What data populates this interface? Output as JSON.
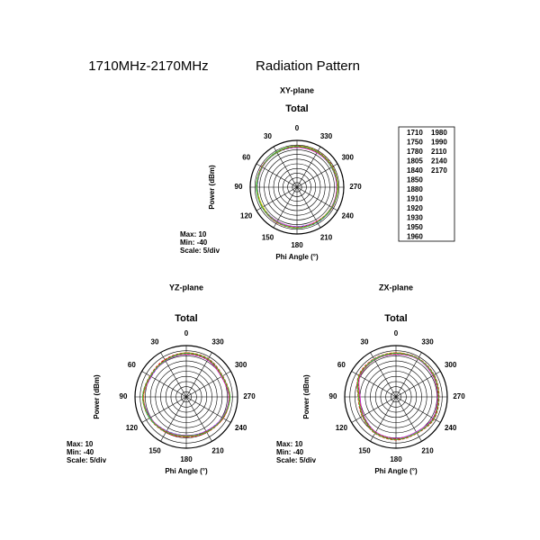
{
  "header": {
    "range": "1710MHz-2170MHz",
    "title": "Radiation Pattern"
  },
  "chart_data": [
    {
      "type": "polar",
      "plane": "XY-plane",
      "title": "Total",
      "ylabel": "Power (dBm)",
      "xlabel": "Phi Angle (°)",
      "angles": [
        0,
        30,
        60,
        90,
        120,
        150,
        180,
        210,
        240,
        270,
        300,
        330
      ],
      "rlim": [
        -40,
        10
      ],
      "rticks": [
        -35,
        -30,
        -25,
        -20,
        -15,
        -10,
        -5,
        0,
        5,
        10
      ],
      "annotations": [
        "Max: 10",
        "Min: -40",
        "Scale: 5/div"
      ],
      "series": [
        {
          "name": "1710",
          "color": "#66dd33",
          "values": [
            3,
            3.5,
            3,
            2.5,
            2,
            2.5,
            3,
            2.5,
            3,
            3.5,
            3,
            3.5
          ]
        },
        {
          "name": "1750",
          "color": "#2222aa",
          "values": [
            3.5,
            3,
            2.5,
            3,
            2.5,
            2,
            2.5,
            3,
            3.5,
            3,
            2.5,
            3
          ]
        },
        {
          "name": "1780",
          "color": "#eedd00",
          "values": [
            4,
            3.5,
            3,
            3,
            2.5,
            3,
            3.5,
            3,
            3,
            4,
            3.5,
            4
          ]
        },
        {
          "name": "1805",
          "color": "#33cccc",
          "values": [
            3,
            3,
            2.5,
            2,
            2,
            2.5,
            3,
            3,
            2.5,
            3,
            3,
            3
          ]
        },
        {
          "name": "1840",
          "color": "#ff33ff",
          "values": [
            2.5,
            3,
            3.5,
            2.5,
            3,
            3.5,
            2.5,
            2,
            3,
            2.5,
            3,
            2.5
          ]
        },
        {
          "name": "1850",
          "color": "#ee2222",
          "values": [
            3,
            3.5,
            3,
            3.5,
            2.5,
            3,
            3,
            3.5,
            3,
            3,
            3.5,
            3
          ]
        },
        {
          "name": "1880",
          "color": "#22cc22",
          "values": [
            3.5,
            3,
            3,
            2.5,
            3,
            2,
            3,
            3,
            2.5,
            3.5,
            3,
            3.5
          ]
        },
        {
          "name": "1910",
          "color": "#2222ff",
          "values": [
            2.5,
            2.5,
            3,
            3,
            2,
            2.5,
            2,
            2.5,
            3,
            2.5,
            2.5,
            2.5
          ]
        },
        {
          "name": "1920",
          "color": "#000000",
          "values": [
            3,
            3,
            3,
            2.5,
            2.5,
            2.5,
            3,
            3,
            3,
            3,
            3,
            3
          ]
        },
        {
          "name": "1930",
          "color": "#ff0000",
          "values": [
            4,
            3.5,
            3,
            3,
            3,
            3.5,
            3.5,
            3,
            3.5,
            3.5,
            4,
            4
          ]
        },
        {
          "name": "1950",
          "color": "#33cc33",
          "values": [
            3,
            2.5,
            3,
            3.5,
            2.5,
            3,
            2.5,
            3,
            3,
            3,
            2.5,
            3
          ]
        },
        {
          "name": "1960",
          "color": "#1133cc",
          "values": [
            3.5,
            3.5,
            3,
            3,
            3,
            2.5,
            3,
            3.5,
            3,
            3,
            3,
            3.5
          ]
        },
        {
          "name": "1980",
          "color": "#ffff00",
          "values": [
            3,
            3,
            2.5,
            2.5,
            2,
            3,
            3,
            2.5,
            2.5,
            3,
            3,
            3
          ]
        },
        {
          "name": "1990",
          "color": "#33dddd",
          "values": [
            3.5,
            3,
            3,
            3,
            2.5,
            2.5,
            3,
            3,
            3,
            3.5,
            3,
            3
          ]
        },
        {
          "name": "2110",
          "color": "#cc33cc",
          "values": [
            2.5,
            3,
            2.5,
            2.5,
            3,
            2,
            2.5,
            3,
            2.5,
            2.5,
            3,
            2.5
          ]
        },
        {
          "name": "2140",
          "color": "#dd0000",
          "values": [
            3,
            3,
            3.5,
            3,
            2.5,
            3,
            3,
            2.5,
            3,
            3,
            3,
            3
          ]
        },
        {
          "name": "2170",
          "color": "#33cc33",
          "values": [
            3.5,
            3.5,
            3,
            3,
            3,
            3,
            3.5,
            3,
            3,
            3.5,
            3.5,
            3.5
          ]
        }
      ]
    },
    {
      "type": "polar",
      "plane": "YZ-plane",
      "title": "Total",
      "ylabel": "Power (dBm)",
      "xlabel": "Phi Angle (°)",
      "angles": [
        0,
        30,
        60,
        90,
        120,
        150,
        180,
        210,
        240,
        270,
        300,
        330
      ],
      "rlim": [
        -40,
        10
      ],
      "rticks": [
        -35,
        -30,
        -25,
        -20,
        -15,
        -10,
        -5,
        0,
        5,
        10
      ],
      "annotations": [
        "Max: 10",
        "Min: -40",
        "Scale: 5/div"
      ],
      "series": [
        {
          "values": [
            2,
            1,
            0,
            2,
            1,
            -1,
            -2,
            -1,
            1,
            2,
            0,
            2
          ]
        },
        {
          "values": [
            2.5,
            1,
            0.5,
            2,
            1,
            -1.5,
            -2,
            -1,
            1.5,
            2,
            0.5,
            2
          ]
        },
        {
          "values": [
            3,
            1.5,
            0,
            2.5,
            1.5,
            -1,
            -1.5,
            -0.5,
            1,
            2.5,
            0,
            2.5
          ]
        },
        {
          "values": [
            2,
            0.5,
            0,
            2,
            1,
            -2,
            -2.5,
            -1,
            1,
            1.5,
            0,
            2
          ]
        },
        {
          "values": [
            1.5,
            1,
            -0.5,
            1.5,
            0.5,
            -1,
            -2,
            -1.5,
            0.5,
            2,
            -0.5,
            1.5
          ]
        },
        {
          "values": [
            2,
            1.5,
            0.5,
            2.5,
            1,
            -0.5,
            -1.5,
            -1,
            1.5,
            2,
            0.5,
            2.5
          ]
        },
        {
          "values": [
            2.5,
            1,
            0,
            2,
            1.5,
            -1,
            -2,
            -0.5,
            1,
            2.5,
            0,
            2
          ]
        },
        {
          "values": [
            1.5,
            0.5,
            -0.5,
            1.5,
            0.5,
            -1.5,
            -2.5,
            -1.5,
            0.5,
            1.5,
            -0.5,
            1.5
          ]
        },
        {
          "values": [
            2,
            1,
            0,
            2,
            1,
            -1,
            -2,
            -1,
            1,
            2,
            0,
            2
          ]
        },
        {
          "values": [
            3,
            2,
            1,
            2.5,
            1.5,
            0,
            -1,
            0,
            1.5,
            2.5,
            1,
            3
          ]
        },
        {
          "values": [
            2,
            1,
            0.5,
            2,
            1,
            -1,
            -1.5,
            -1,
            1,
            2,
            0,
            2
          ]
        },
        {
          "values": [
            2.5,
            1.5,
            0,
            2,
            1,
            -0.5,
            -2,
            -1,
            1,
            2,
            0.5,
            2.5
          ]
        },
        {
          "values": [
            2,
            1,
            0,
            1.5,
            1,
            -1,
            -2,
            -1,
            1,
            2,
            0,
            2
          ]
        },
        {
          "values": [
            2.5,
            1,
            0.5,
            2,
            1.5,
            -1,
            -2,
            -0.5,
            1,
            2,
            0.5,
            2
          ]
        },
        {
          "values": [
            1.5,
            0.5,
            0,
            2,
            0.5,
            -1.5,
            -2.5,
            -1,
            0.5,
            1.5,
            -0.5,
            1.5
          ]
        },
        {
          "values": [
            2,
            1.5,
            0,
            2,
            1,
            -1,
            -1.5,
            -1,
            1.5,
            2,
            0,
            2
          ]
        },
        {
          "values": [
            2.5,
            1,
            0.5,
            2.5,
            1,
            -0.5,
            -2,
            -0.5,
            1,
            2.5,
            0.5,
            2.5
          ]
        }
      ]
    },
    {
      "type": "polar",
      "plane": "ZX-plane",
      "title": "Total",
      "ylabel": "Power (dBm)",
      "xlabel": "Phi Angle (°)",
      "angles": [
        0,
        30,
        60,
        90,
        120,
        150,
        180,
        210,
        240,
        270,
        300,
        330
      ],
      "rlim": [
        -40,
        10
      ],
      "rticks": [
        -35,
        -30,
        -25,
        -20,
        -15,
        -10,
        -5,
        0,
        5,
        10
      ],
      "annotations": [
        "Max: 10",
        "Min: -40",
        "Scale: 5/div"
      ],
      "series": [
        {
          "values": [
            2,
            2,
            1,
            -4,
            -3,
            0,
            1,
            0,
            2,
            1,
            2,
            3
          ]
        },
        {
          "values": [
            2.5,
            2,
            0.5,
            -4.5,
            -3,
            0.5,
            1,
            0.5,
            2,
            1.5,
            2,
            3
          ]
        },
        {
          "values": [
            3,
            2.5,
            1,
            -3.5,
            -2.5,
            0,
            1.5,
            0,
            2.5,
            1,
            2.5,
            3
          ]
        },
        {
          "values": [
            2,
            1.5,
            1,
            -4,
            -3.5,
            -0.5,
            1,
            0,
            2,
            1,
            1.5,
            2.5
          ]
        },
        {
          "values": [
            1.5,
            2,
            0.5,
            -5,
            -3,
            0,
            0.5,
            -0.5,
            1.5,
            0.5,
            2,
            2.5
          ]
        },
        {
          "values": [
            2,
            2.5,
            1.5,
            -3.5,
            -2.5,
            0.5,
            1.5,
            0.5,
            2,
            1.5,
            2.5,
            3
          ]
        },
        {
          "values": [
            2.5,
            2,
            1,
            -4,
            -3,
            0,
            1,
            0,
            2.5,
            1,
            2,
            3
          ]
        },
        {
          "values": [
            1.5,
            1.5,
            0.5,
            -4.5,
            -3.5,
            -0.5,
            0.5,
            -0.5,
            1.5,
            0.5,
            1.5,
            2.5
          ]
        },
        {
          "values": [
            2,
            2,
            1,
            -4,
            -3,
            0,
            1,
            0,
            2,
            1,
            2,
            3
          ]
        },
        {
          "values": [
            3,
            3,
            2,
            -3,
            -2,
            1,
            2,
            1,
            3,
            2,
            3,
            3.5
          ]
        },
        {
          "values": [
            2,
            2,
            1,
            -4,
            -3,
            0,
            1,
            0,
            2,
            1,
            2,
            3
          ]
        },
        {
          "values": [
            2.5,
            2,
            1,
            -4.5,
            -3,
            0,
            1,
            0.5,
            2,
            1.5,
            2,
            3
          ]
        },
        {
          "values": [
            2,
            1.5,
            0.5,
            -4,
            -3,
            0,
            1,
            0,
            2,
            1,
            2,
            2.5
          ]
        },
        {
          "values": [
            2.5,
            2.5,
            1,
            -3.5,
            -3,
            0.5,
            1,
            0,
            2,
            1,
            2.5,
            3
          ]
        },
        {
          "values": [
            1.5,
            1.5,
            0.5,
            -5,
            -3.5,
            -0.5,
            0.5,
            -0.5,
            1.5,
            0.5,
            1.5,
            2.5
          ]
        },
        {
          "values": [
            2,
            2,
            1,
            -4,
            -3,
            0,
            1,
            0.5,
            2,
            1,
            2,
            3
          ]
        },
        {
          "values": [
            2.5,
            2,
            1.5,
            -3.5,
            -2.5,
            0.5,
            1.5,
            0.5,
            2.5,
            1.5,
            2.5,
            3
          ]
        }
      ]
    }
  ]
}
